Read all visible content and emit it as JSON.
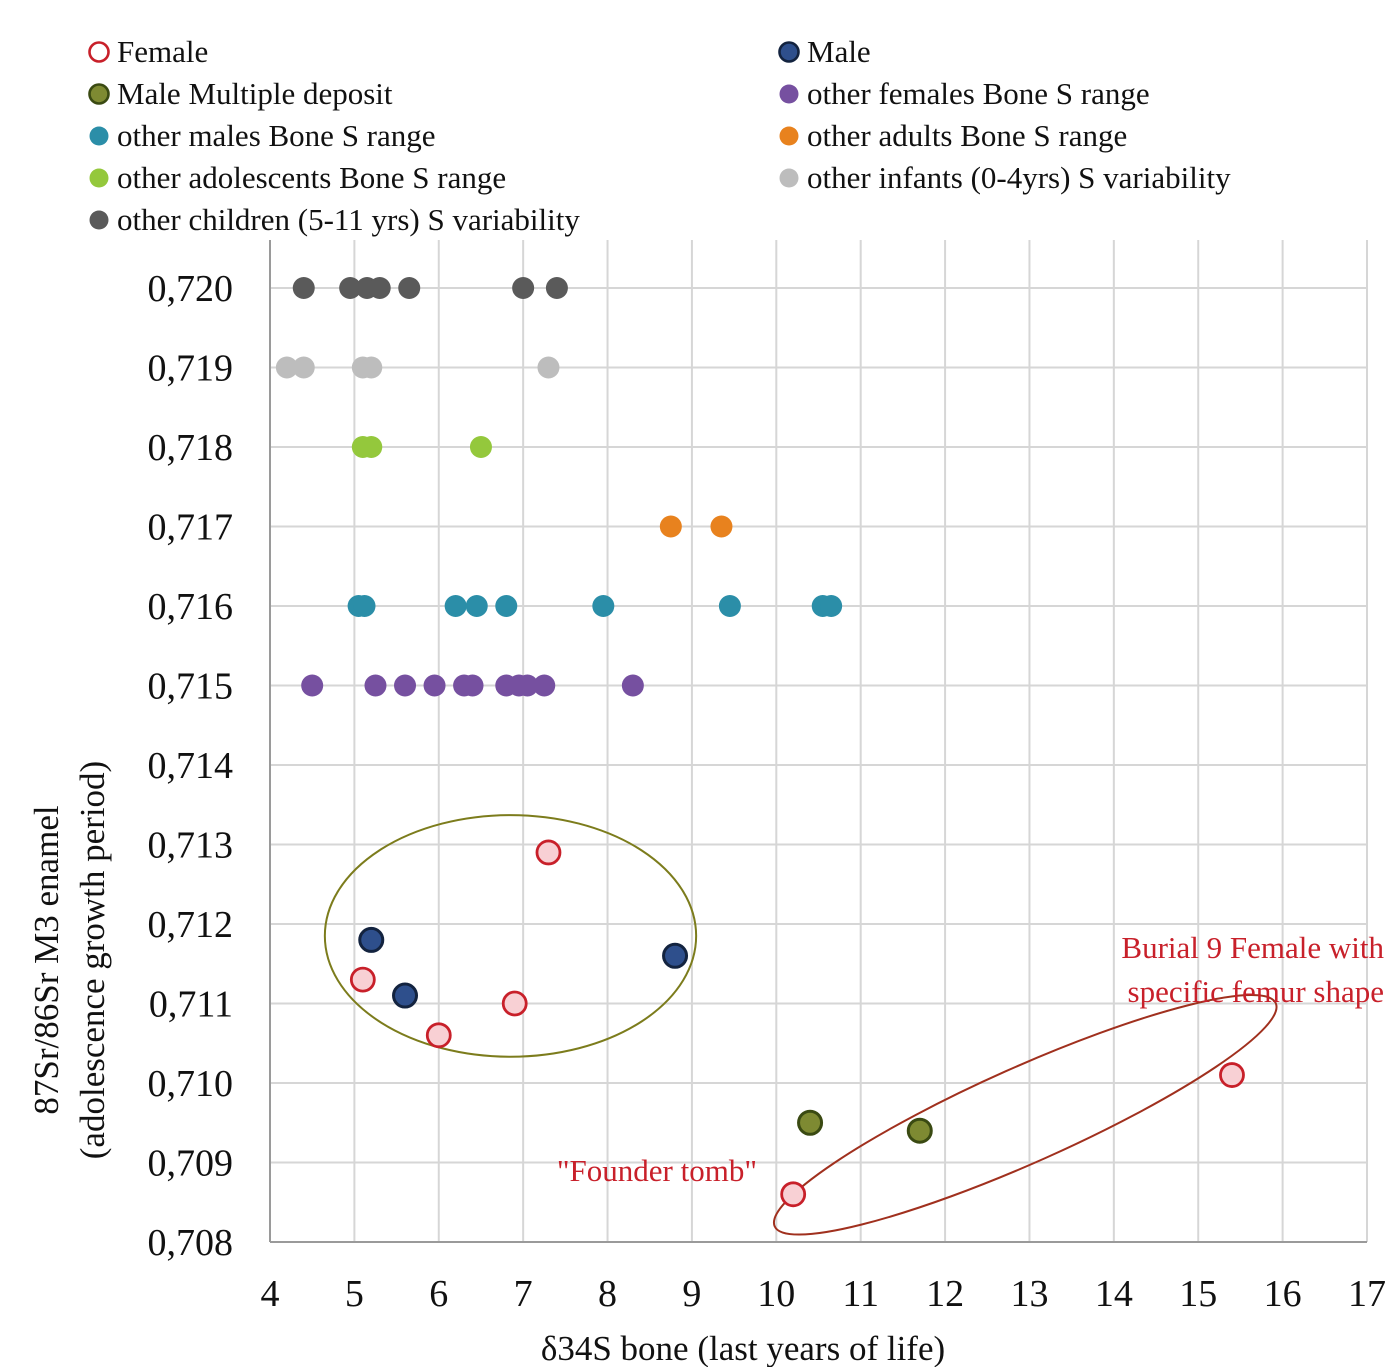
{
  "chart_data": {
    "type": "scatter",
    "xlabel": "δ34S bone (last years of life)",
    "ylabel_line1": "87Sr/86Sr M3 enamel",
    "ylabel_line2": "(adolescence growth period)",
    "xlim": [
      4,
      17
    ],
    "ylim": [
      0.708,
      0.72
    ],
    "x_ticks": [
      4,
      5,
      6,
      7,
      8,
      9,
      10,
      11,
      12,
      13,
      14,
      15,
      16,
      17
    ],
    "x_tick_labels": [
      "4",
      "5",
      "6",
      "7",
      "8",
      "9",
      "10",
      "11",
      "12",
      "13",
      "14",
      "15",
      "16",
      "17"
    ],
    "y_ticks": [
      0.708,
      0.709,
      0.71,
      0.711,
      0.712,
      0.713,
      0.714,
      0.715,
      0.716,
      0.717,
      0.718,
      0.719,
      0.72
    ],
    "y_tick_labels": [
      "0,708",
      "0,709",
      "0,710",
      "0,711",
      "0,712",
      "0,713",
      "0,714",
      "0,715",
      "0,716",
      "0,717",
      "0,718",
      "0,719",
      "0,720"
    ],
    "grid": true,
    "legend_placement": "top",
    "series": [
      {
        "name": "Female",
        "color": "#c8202a",
        "fill": "#f8d0d4",
        "marker": "hollow",
        "x": [
          7.3,
          5.1,
          6.0,
          6.9,
          15.4,
          10.2
        ],
        "y": [
          0.7129,
          0.7113,
          0.7106,
          0.711,
          0.7101,
          0.7086
        ]
      },
      {
        "name": "Male",
        "color": "#13233f",
        "fill": "#2e4f8c",
        "marker": "outlined",
        "x": [
          5.2,
          5.6,
          8.8
        ],
        "y": [
          0.7118,
          0.7111,
          0.7116
        ]
      },
      {
        "name": "Male Multiple deposit",
        "color": "#3a4a12",
        "fill": "#7e8a32",
        "marker": "outlined",
        "x": [
          10.4,
          11.7
        ],
        "y": [
          0.7095,
          0.7094
        ]
      },
      {
        "name": "other females Bone S range",
        "color": "#7650a0",
        "fill": "#7650a0",
        "marker": "filled",
        "x": [
          4.5,
          5.25,
          5.6,
          5.95,
          6.3,
          6.4,
          6.8,
          6.95,
          7.05,
          7.25,
          8.3
        ],
        "y": [
          0.715,
          0.715,
          0.715,
          0.715,
          0.715,
          0.715,
          0.715,
          0.715,
          0.715,
          0.715,
          0.715
        ]
      },
      {
        "name": "other males Bone S range",
        "color": "#2b8ea8",
        "fill": "#2b8ea8",
        "marker": "filled",
        "x": [
          5.05,
          5.12,
          6.2,
          6.45,
          6.8,
          7.95,
          9.45,
          10.55,
          10.65
        ],
        "y": [
          0.716,
          0.716,
          0.716,
          0.716,
          0.716,
          0.716,
          0.716,
          0.716,
          0.716
        ]
      },
      {
        "name": "other adults Bone S range",
        "color": "#e8821e",
        "fill": "#e8821e",
        "marker": "filled",
        "x": [
          8.75,
          9.35
        ],
        "y": [
          0.717,
          0.717
        ]
      },
      {
        "name": "other adolescents Bone S range",
        "color": "#94c83c",
        "fill": "#94c83c",
        "marker": "filled",
        "x": [
          5.1,
          5.2,
          6.5
        ],
        "y": [
          0.718,
          0.718,
          0.718
        ]
      },
      {
        "name": "other infants (0-4yrs) S variability",
        "color": "#bdbdbd",
        "fill": "#bdbdbd",
        "marker": "filled",
        "x": [
          4.2,
          4.4,
          5.1,
          5.2,
          7.3
        ],
        "y": [
          0.719,
          0.719,
          0.719,
          0.719,
          0.719
        ]
      },
      {
        "name": "other children (5-11 yrs) S variability",
        "color": "#5a5a5a",
        "fill": "#5a5a5a",
        "marker": "filled",
        "x": [
          4.4,
          4.95,
          5.15,
          5.3,
          5.65,
          7.0,
          7.4
        ],
        "y": [
          0.72,
          0.72,
          0.72,
          0.72,
          0.72,
          0.72,
          0.72
        ]
      }
    ],
    "annotations": [
      {
        "text": "Burial 9 Female with",
        "color": "#c8202a"
      },
      {
        "text": "specific femur shape",
        "color": "#c8202a"
      },
      {
        "text": "\"Founder tomb\"",
        "color": "#c8202a"
      }
    ],
    "groupings": [
      {
        "shape": "ellipse",
        "color": "#7c7c1c",
        "center": [
          6.85,
          0.71185
        ],
        "radius_x": 2.2,
        "radius_y": 0.00152,
        "rotation_deg": 0
      },
      {
        "shape": "ellipse",
        "color": "#a0301e",
        "center": [
          12.95,
          0.7096
        ],
        "radius_x": 3.25,
        "radius_y": 0.0006,
        "rotation_deg": -24
      }
    ]
  }
}
